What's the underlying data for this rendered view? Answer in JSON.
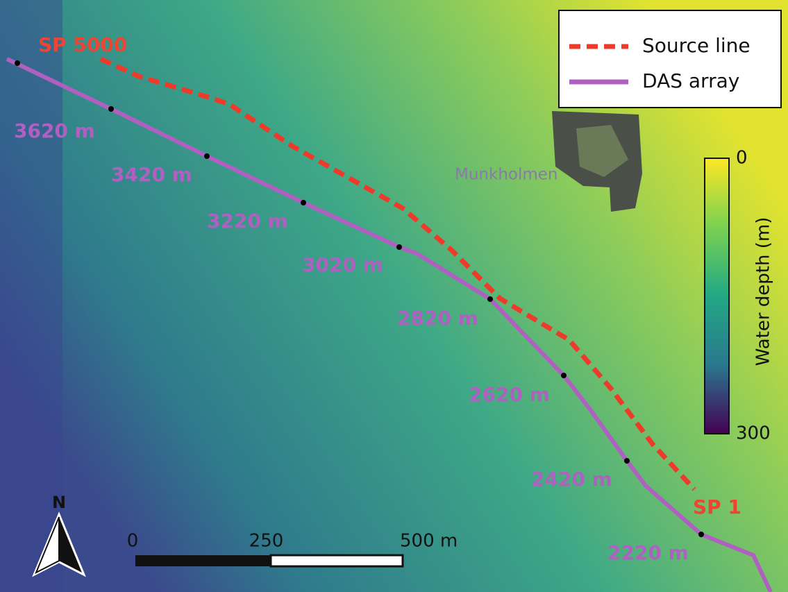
{
  "map": {
    "shotpoints": {
      "start": "SP 5000",
      "end": "SP 1"
    },
    "legend": [
      "Source line",
      "DAS array"
    ],
    "place": "Munkholmen",
    "distance_labels": [
      "3620 m",
      "3420 m",
      "3220 m",
      "3020 m",
      "2820 m",
      "2620 m",
      "2420 m",
      "2220 m"
    ],
    "colorbar": {
      "label": "Water depth (m)",
      "ticks": [
        0,
        300
      ]
    },
    "scale_bar": {
      "ticks": [
        0,
        250,
        {
          "value": 500,
          "label": "500 m"
        }
      ]
    },
    "north": "N"
  }
}
